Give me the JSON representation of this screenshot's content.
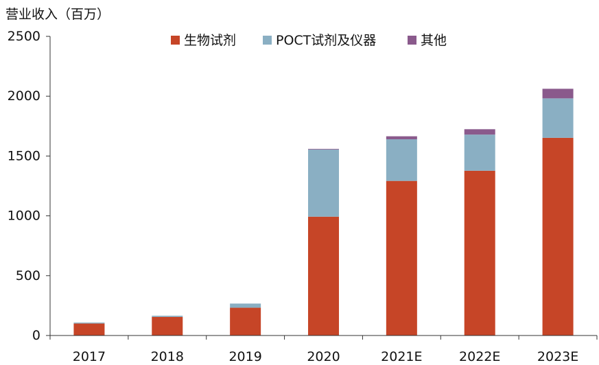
{
  "chart_data": {
    "type": "bar",
    "stacked": true,
    "ylabel": "营业收入（百万）",
    "categories": [
      "2017",
      "2018",
      "2019",
      "2020",
      "2021E",
      "2022E",
      "2023E"
    ],
    "series": [
      {
        "name": "生物试剂",
        "color": "#c64527",
        "values": [
          100,
          155,
          232,
          993,
          1292,
          1377,
          1652
        ]
      },
      {
        "name": "POCT试剂及仪器",
        "color": "#8aafc3",
        "values": [
          8,
          10,
          35,
          562,
          348,
          302,
          330
        ]
      },
      {
        "name": "其他",
        "color": "#8a5a8c",
        "values": [
          0,
          0,
          0,
          5,
          25,
          45,
          80
        ]
      }
    ],
    "ylim": [
      0,
      2500
    ],
    "yticks": [
      0,
      500,
      1000,
      1500,
      2000,
      2500
    ],
    "grid": false,
    "legend_position": "top-center"
  }
}
